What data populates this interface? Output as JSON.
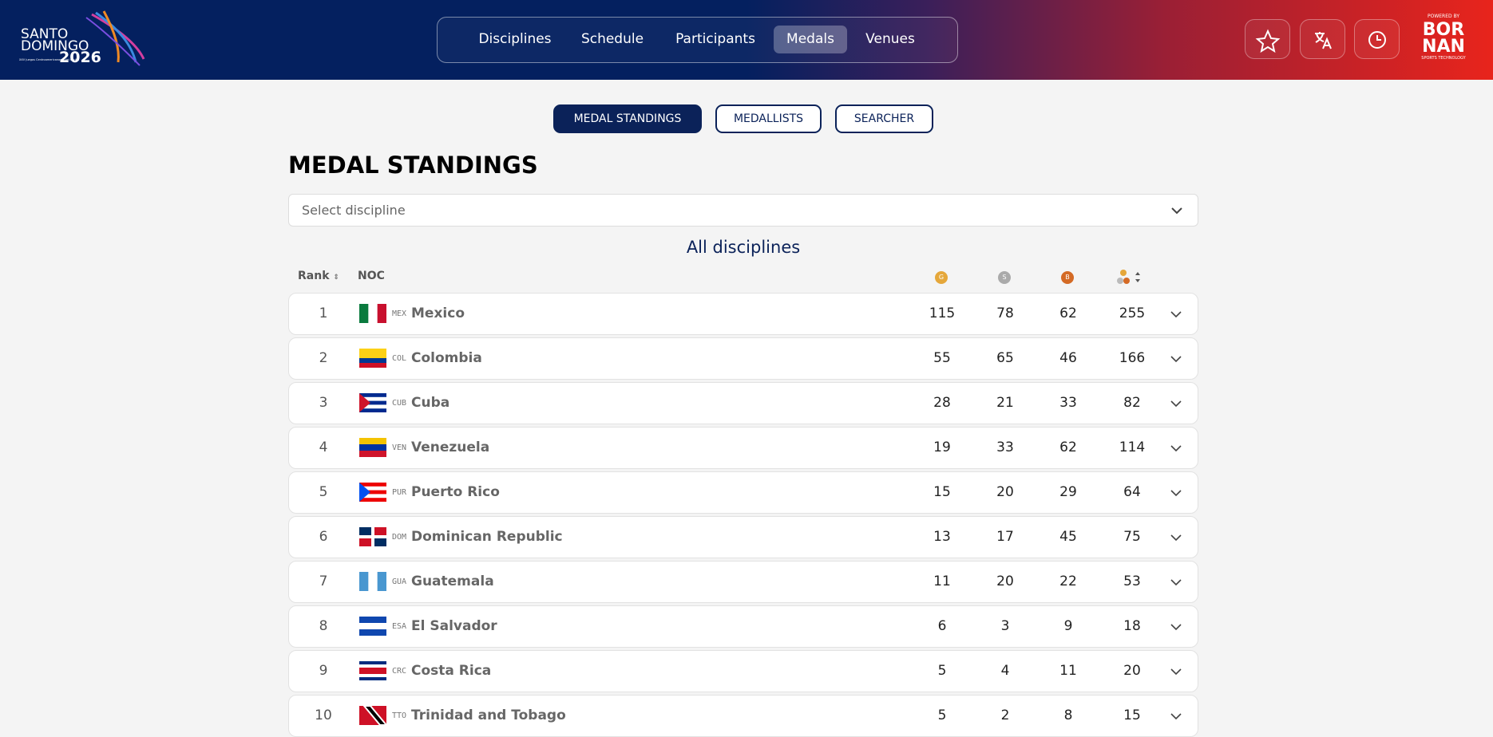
{
  "header": {
    "logo": {
      "line1": "SANTO",
      "line2": "DOMINGO",
      "year": "2026",
      "tagline": "XXV Juegos Centroamericanos y del Caribe"
    },
    "nav": [
      "Disciplines",
      "Schedule",
      "Participants",
      "Medals",
      "Venues"
    ],
    "active_nav": 3,
    "sponsor": {
      "powered": "POWERED BY",
      "line1": "BOR",
      "line2": "NAN",
      "sub": "SPORTS TECHNOLOGY"
    }
  },
  "tabs": [
    "MEDAL STANDINGS",
    "MEDALLISTS",
    "SEARCHER"
  ],
  "active_tab": 0,
  "title": "MEDAL STANDINGS",
  "select_placeholder": "Select discipline",
  "subtitle": "All disciplines",
  "table": {
    "columns": {
      "rank": "Rank",
      "noc": "NOC",
      "gold": "G",
      "silver": "S",
      "bronze": "B"
    },
    "rows": [
      {
        "rank": 1,
        "code": "MEX",
        "name": "Mexico",
        "gold": 115,
        "silver": 78,
        "bronze": 62,
        "total": 255
      },
      {
        "rank": 2,
        "code": "COL",
        "name": "Colombia",
        "gold": 55,
        "silver": 65,
        "bronze": 46,
        "total": 166
      },
      {
        "rank": 3,
        "code": "CUB",
        "name": "Cuba",
        "gold": 28,
        "silver": 21,
        "bronze": 33,
        "total": 82
      },
      {
        "rank": 4,
        "code": "VEN",
        "name": "Venezuela",
        "gold": 19,
        "silver": 33,
        "bronze": 62,
        "total": 114
      },
      {
        "rank": 5,
        "code": "PUR",
        "name": "Puerto Rico",
        "gold": 15,
        "silver": 20,
        "bronze": 29,
        "total": 64
      },
      {
        "rank": 6,
        "code": "DOM",
        "name": "Dominican Republic",
        "gold": 13,
        "silver": 17,
        "bronze": 45,
        "total": 75
      },
      {
        "rank": 7,
        "code": "GUA",
        "name": "Guatemala",
        "gold": 11,
        "silver": 20,
        "bronze": 22,
        "total": 53
      },
      {
        "rank": 8,
        "code": "ESA",
        "name": "El Salvador",
        "gold": 6,
        "silver": 3,
        "bronze": 9,
        "total": 18
      },
      {
        "rank": 9,
        "code": "CRC",
        "name": "Costa Rica",
        "gold": 5,
        "silver": 4,
        "bronze": 11,
        "total": 20
      },
      {
        "rank": 10,
        "code": "TTO",
        "name": "Trinidad and Tobago",
        "gold": 5,
        "silver": 2,
        "bronze": 8,
        "total": 15
      }
    ]
  }
}
